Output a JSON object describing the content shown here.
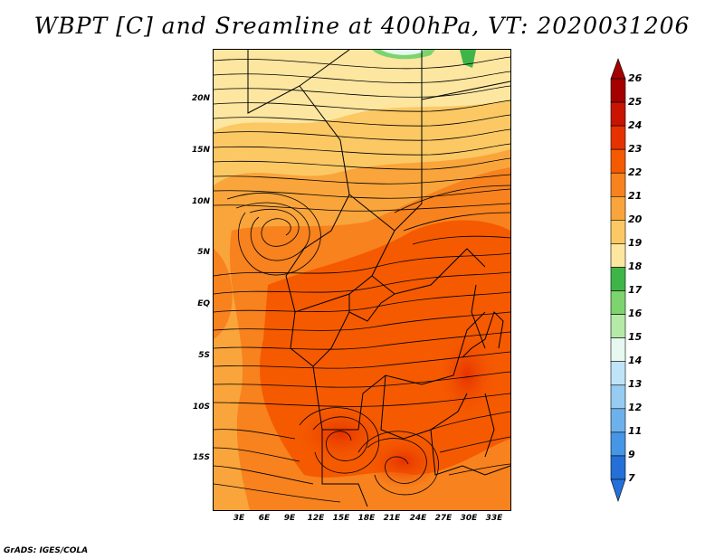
{
  "title": "WBPT [C] and Sreamline at 400hPa, VT: 2020031206",
  "credit": "GrADS: IGES/COLA",
  "lat_labels": [
    "20N",
    "15N",
    "10N",
    "5N",
    "EQ",
    "5S",
    "10S",
    "15S"
  ],
  "lon_labels": [
    "3E",
    "6E",
    "9E",
    "12E",
    "15E",
    "18E",
    "21E",
    "24E",
    "27E",
    "30E",
    "33E"
  ],
  "colorbar": {
    "labels": [
      "26",
      "25",
      "24",
      "23",
      "22",
      "21",
      "20",
      "19",
      "18",
      "17",
      "16",
      "15",
      "14",
      "13",
      "12",
      "11",
      "9",
      "7"
    ],
    "colors": [
      "#a50000",
      "#c81400",
      "#e63200",
      "#f55a00",
      "#f7821e",
      "#f9a53c",
      "#fbc864",
      "#fde6a0",
      "#3fb548",
      "#7dd36e",
      "#b4e9a8",
      "#e6f8ef",
      "#bfe3f7",
      "#96cbf2",
      "#6db1ec",
      "#4596e4",
      "#2470d8"
    ]
  }
}
